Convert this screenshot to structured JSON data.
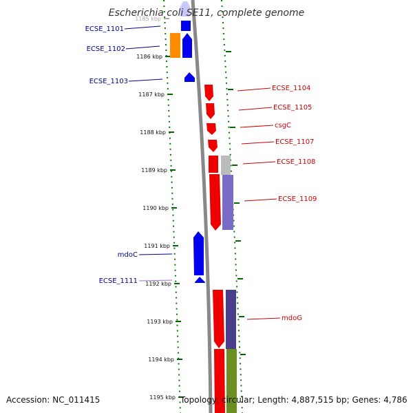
{
  "title": "Escherichia coli SE11, complete genome",
  "footer": {
    "accession": "Accession: NC_011415",
    "topology": "Topology: circular; Length: 4,887,515 bp; Genes: 4,786"
  },
  "colors": {
    "forward_gene": "#ee0000",
    "reverse_gene": "#0000ee",
    "orange_gene": "#ff8c00",
    "backbone": "#888888",
    "tick": "#006400",
    "forward_label": "#cc0000",
    "reverse_label": "#00008b",
    "track_grey": "#bbbbbb",
    "track_purple": "#7b6bc8",
    "track_navy": "#4a3f8c",
    "track_olive": "#6b8e23"
  },
  "ticks": [
    "1185 kbp",
    "1186 kbp",
    "1187 kbp",
    "1188 kbp",
    "1189 kbp",
    "1190 kbp",
    "1191 kbp",
    "1192 kbp",
    "1193 kbp",
    "1194 kbp",
    "1195 kbp"
  ],
  "genes": [
    {
      "label": "ECSE_1101",
      "strand": "reverse"
    },
    {
      "label": "ECSE_1102",
      "strand": "reverse"
    },
    {
      "label": "ECSE_1103",
      "strand": "reverse"
    },
    {
      "label": "ECSE_1104",
      "strand": "forward"
    },
    {
      "label": "ECSE_1105",
      "strand": "forward"
    },
    {
      "label": "csgC",
      "strand": "forward"
    },
    {
      "label": "ECSE_1107",
      "strand": "forward"
    },
    {
      "label": "ECSE_1108",
      "strand": "forward"
    },
    {
      "label": "ECSE_1109",
      "strand": "forward"
    },
    {
      "label": "mdoC",
      "strand": "reverse"
    },
    {
      "label": "ECSE_1111",
      "strand": "reverse"
    },
    {
      "label": "mdoG",
      "strand": "forward"
    }
  ]
}
